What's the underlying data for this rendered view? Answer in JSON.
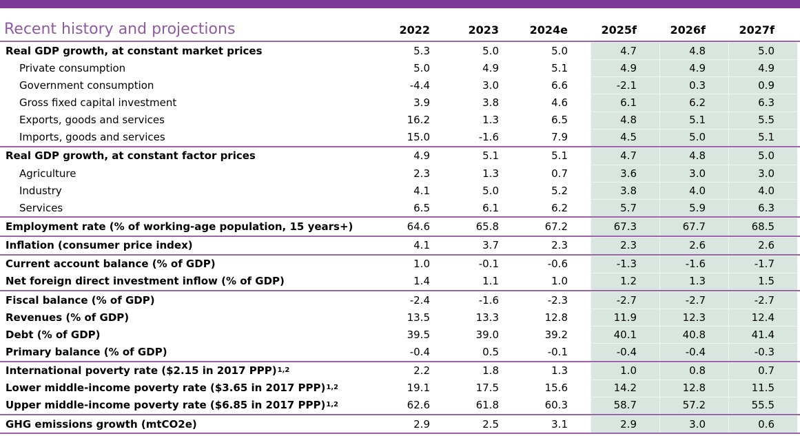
{
  "title": "Recent history and projections",
  "columns": [
    "2022",
    "2023",
    "2024e",
    "2025f",
    "2026f",
    "2027f"
  ],
  "colors": {
    "top_bar": "#7B3A95",
    "title": "#9059A2",
    "section_line": "#9C64A8",
    "forecast_bg": "#D9E6DF",
    "text": "#000000"
  },
  "rows": [
    {
      "label": "Real GDP growth, at constant market prices",
      "sup": "",
      "bold": true,
      "indent": false,
      "rule": false,
      "values": [
        "5.3",
        "5.0",
        "5.0",
        "4.7",
        "4.8",
        "5.0"
      ]
    },
    {
      "label": "Private consumption",
      "sup": "",
      "bold": false,
      "indent": true,
      "rule": false,
      "values": [
        "5.0",
        "4.9",
        "5.1",
        "4.9",
        "4.9",
        "4.9"
      ]
    },
    {
      "label": "Government consumption",
      "sup": "",
      "bold": false,
      "indent": true,
      "rule": false,
      "values": [
        "-4.4",
        "3.0",
        "6.6",
        "-2.1",
        "0.3",
        "0.9"
      ]
    },
    {
      "label": "Gross fixed capital investment",
      "sup": "",
      "bold": false,
      "indent": true,
      "rule": false,
      "values": [
        "3.9",
        "3.8",
        "4.6",
        "6.1",
        "6.2",
        "6.3"
      ]
    },
    {
      "label": "Exports, goods and services",
      "sup": "",
      "bold": false,
      "indent": true,
      "rule": false,
      "values": [
        "16.2",
        "1.3",
        "6.5",
        "4.8",
        "5.1",
        "5.5"
      ]
    },
    {
      "label": "Imports, goods and services",
      "sup": "",
      "bold": false,
      "indent": true,
      "rule": false,
      "values": [
        "15.0",
        "-1.6",
        "7.9",
        "4.5",
        "5.0",
        "5.1"
      ]
    },
    {
      "label": "Real GDP growth, at constant factor prices",
      "sup": "",
      "bold": true,
      "indent": false,
      "rule": true,
      "values": [
        "4.9",
        "5.1",
        "5.1",
        "4.7",
        "4.8",
        "5.0"
      ]
    },
    {
      "label": "Agriculture",
      "sup": "",
      "bold": false,
      "indent": true,
      "rule": false,
      "values": [
        "2.3",
        "1.3",
        "0.7",
        "3.6",
        "3.0",
        "3.0"
      ]
    },
    {
      "label": "Industry",
      "sup": "",
      "bold": false,
      "indent": true,
      "rule": false,
      "values": [
        "4.1",
        "5.0",
        "5.2",
        "3.8",
        "4.0",
        "4.0"
      ]
    },
    {
      "label": "Services",
      "sup": "",
      "bold": false,
      "indent": true,
      "rule": false,
      "values": [
        "6.5",
        "6.1",
        "6.2",
        "5.7",
        "5.9",
        "6.3"
      ]
    },
    {
      "label": "Employment rate (% of working-age population, 15 years+)",
      "sup": "",
      "bold": true,
      "indent": false,
      "rule": true,
      "values": [
        "64.6",
        "65.8",
        "67.2",
        "67.3",
        "67.7",
        "68.5"
      ]
    },
    {
      "label": "Inflation (consumer price index)",
      "sup": "",
      "bold": true,
      "indent": false,
      "rule": true,
      "values": [
        "4.1",
        "3.7",
        "2.3",
        "2.3",
        "2.6",
        "2.6"
      ]
    },
    {
      "label": "Current account balance (% of GDP)",
      "sup": "",
      "bold": true,
      "indent": false,
      "rule": true,
      "values": [
        "1.0",
        "-0.1",
        "-0.6",
        "-1.3",
        "-1.6",
        "-1.7"
      ]
    },
    {
      "label": "Net foreign direct investment inflow (% of GDP)",
      "sup": "",
      "bold": true,
      "indent": false,
      "rule": false,
      "values": [
        "1.4",
        "1.1",
        "1.0",
        "1.2",
        "1.3",
        "1.5"
      ]
    },
    {
      "label": "Fiscal balance (% of GDP)",
      "sup": "",
      "bold": true,
      "indent": false,
      "rule": true,
      "values": [
        "-2.4",
        "-1.6",
        "-2.3",
        "-2.7",
        "-2.7",
        "-2.7"
      ]
    },
    {
      "label": "Revenues (% of GDP)",
      "sup": "",
      "bold": true,
      "indent": false,
      "rule": false,
      "values": [
        "13.5",
        "13.3",
        "12.8",
        "11.9",
        "12.3",
        "12.4"
      ]
    },
    {
      "label": "Debt (% of GDP)",
      "sup": "",
      "bold": true,
      "indent": false,
      "rule": false,
      "values": [
        "39.5",
        "39.0",
        "39.2",
        "40.1",
        "40.8",
        "41.4"
      ]
    },
    {
      "label": "Primary balance (% of GDP)",
      "sup": "",
      "bold": true,
      "indent": false,
      "rule": false,
      "values": [
        "-0.4",
        "0.5",
        "-0.1",
        "-0.4",
        "-0.4",
        "-0.3"
      ]
    },
    {
      "label": "International poverty rate ($2.15 in 2017 PPP)",
      "sup": "1,2",
      "bold": true,
      "indent": false,
      "rule": true,
      "values": [
        "2.2",
        "1.8",
        "1.3",
        "1.0",
        "0.8",
        "0.7"
      ]
    },
    {
      "label": "Lower middle-income poverty rate ($3.65 in 2017 PPP)",
      "sup": "1,2",
      "bold": true,
      "indent": false,
      "rule": false,
      "values": [
        "19.1",
        "17.5",
        "15.6",
        "14.2",
        "12.8",
        "11.5"
      ]
    },
    {
      "label": "Upper middle-income poverty rate ($6.85 in 2017 PPP)",
      "sup": "1,2",
      "bold": true,
      "indent": false,
      "rule": false,
      "values": [
        "62.6",
        "61.8",
        "60.3",
        "58.7",
        "57.2",
        "55.5"
      ]
    },
    {
      "label": "GHG emissions growth (mtCO2e)",
      "sup": "",
      "bold": true,
      "indent": false,
      "rule": true,
      "values": [
        "2.9",
        "2.5",
        "3.1",
        "2.9",
        "3.0",
        "0.6"
      ]
    }
  ]
}
